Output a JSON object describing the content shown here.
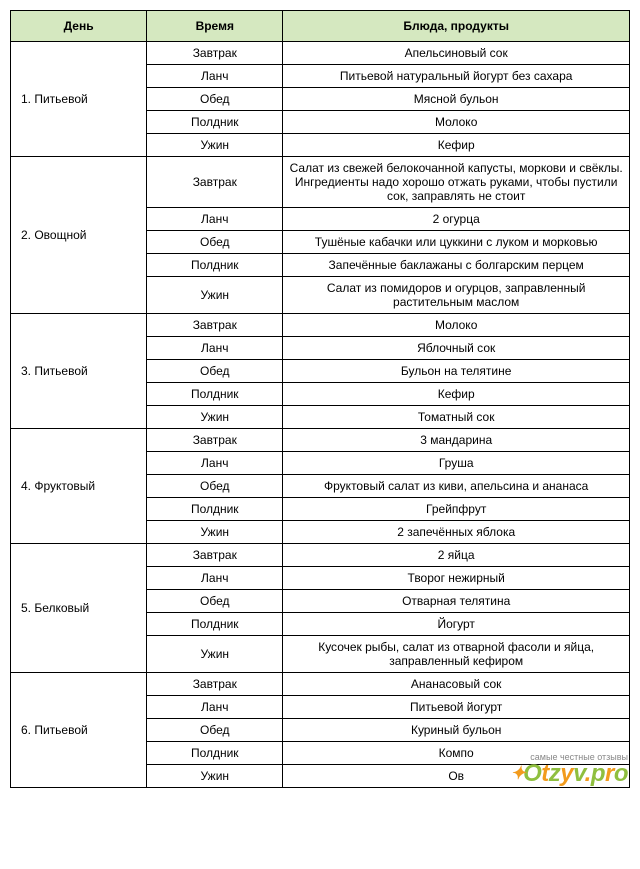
{
  "table": {
    "headers": {
      "day": "День",
      "time": "Время",
      "dish": "Блюда, продукты"
    },
    "header_bg": "#d5e8c0",
    "border_color": "#000000",
    "font_family": "Verdana",
    "font_size_pt": 9,
    "days": [
      {
        "name": "1. Питьевой",
        "meals": [
          {
            "time": "Завтрак",
            "dish": "Апельсиновый сок"
          },
          {
            "time": "Ланч",
            "dish": "Питьевой натуральный йогурт без сахара"
          },
          {
            "time": "Обед",
            "dish": "Мясной бульон"
          },
          {
            "time": "Полдник",
            "dish": "Молоко"
          },
          {
            "time": "Ужин",
            "dish": "Кефир"
          }
        ]
      },
      {
        "name": "2. Овощной",
        "meals": [
          {
            "time": "Завтрак",
            "dish": "Салат из свежей белокочанной капусты, моркови и свёклы. Ингредиенты надо хорошо отжать руками, чтобы пустили сок, заправлять не стоит"
          },
          {
            "time": "Ланч",
            "dish": "2 огурца"
          },
          {
            "time": "Обед",
            "dish": "Тушёные кабачки или цуккини с луком и морковью"
          },
          {
            "time": "Полдник",
            "dish": "Запечённые баклажаны с болгарским перцем"
          },
          {
            "time": "Ужин",
            "dish": "Салат из помидоров и огурцов, заправленный растительным маслом"
          }
        ]
      },
      {
        "name": "3. Питьевой",
        "meals": [
          {
            "time": "Завтрак",
            "dish": "Молоко"
          },
          {
            "time": "Ланч",
            "dish": "Яблочный сок"
          },
          {
            "time": "Обед",
            "dish": "Бульон на телятине"
          },
          {
            "time": "Полдник",
            "dish": "Кефир"
          },
          {
            "time": "Ужин",
            "dish": "Томатный сок"
          }
        ]
      },
      {
        "name": "4. Фруктовый",
        "meals": [
          {
            "time": "Завтрак",
            "dish": "3 мандарина"
          },
          {
            "time": "Ланч",
            "dish": "Груша"
          },
          {
            "time": "Обед",
            "dish": "Фруктовый салат из киви, апельсина и ананаса"
          },
          {
            "time": "Полдник",
            "dish": "Грейпфрут"
          },
          {
            "time": "Ужин",
            "dish": "2 запечённых яблока"
          }
        ]
      },
      {
        "name": "5. Белковый",
        "meals": [
          {
            "time": "Завтрак",
            "dish": "2 яйца"
          },
          {
            "time": "Ланч",
            "dish": "Творог нежирный"
          },
          {
            "time": "Обед",
            "dish": "Отварная телятина"
          },
          {
            "time": "Полдник",
            "dish": "Йогурт"
          },
          {
            "time": "Ужин",
            "dish": "Кусочек рыбы, салат из отварной фасоли и яйца, заправленный кефиром"
          }
        ]
      },
      {
        "name": "6. Питьевой",
        "meals": [
          {
            "time": "Завтрак",
            "dish": "Ананасовый сок"
          },
          {
            "time": "Ланч",
            "dish": "Питьевой йогурт"
          },
          {
            "time": "Обед",
            "dish": "Куриный бульон"
          },
          {
            "time": "Полдник",
            "dish": "Компо"
          },
          {
            "time": "Ужин",
            "dish": "Ов"
          }
        ]
      }
    ]
  },
  "watermark": {
    "small_text": "самые честные отзывы",
    "brand": "Otzyv.pro",
    "colors": {
      "green": "#8fbf3f",
      "orange": "#f29b1d",
      "grey": "#888888"
    }
  }
}
